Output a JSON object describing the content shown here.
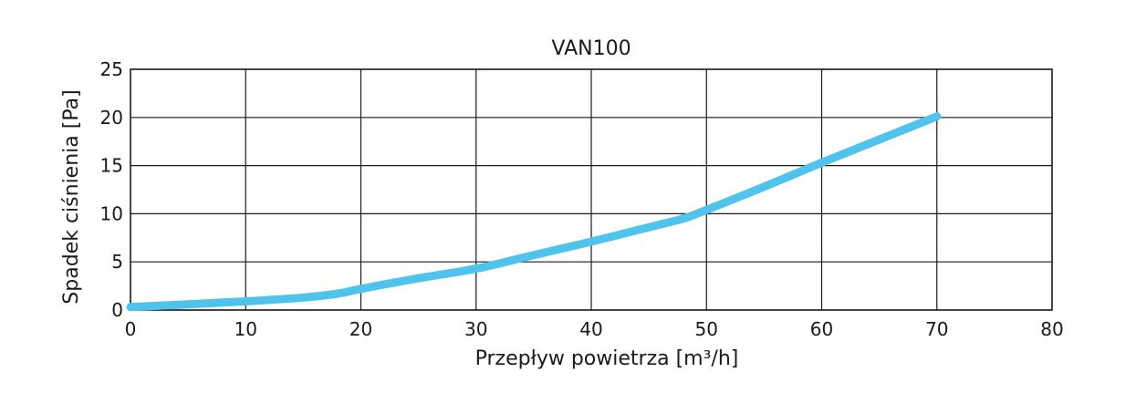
{
  "chart_data": {
    "type": "line",
    "title": "VAN100",
    "xlabel": "Przepływ powietrza [m³/h]",
    "ylabel": "Spadek ciśnienia [Pa]",
    "xlim": [
      0,
      80
    ],
    "ylim": [
      0,
      25
    ],
    "xticks": [
      0,
      10,
      20,
      30,
      40,
      50,
      60,
      70,
      80
    ],
    "yticks": [
      0,
      5,
      10,
      15,
      20,
      25
    ],
    "xtick_labels": [
      "0",
      "10",
      "20",
      "30",
      "40",
      "50",
      "60",
      "70",
      "80"
    ],
    "ytick_labels": [
      "0",
      "5",
      "10",
      "15",
      "20",
      "25"
    ],
    "grid": true,
    "legend": "none",
    "series": [
      {
        "color": "#4fc3ec",
        "x": [
          0,
          5,
          10,
          15,
          18,
          20,
          25,
          30,
          35,
          40,
          45,
          48,
          50,
          55,
          60,
          65,
          70
        ],
        "y": [
          0.3,
          0.6,
          0.9,
          1.3,
          1.7,
          2.2,
          3.3,
          4.3,
          5.7,
          7.1,
          8.6,
          9.5,
          10.4,
          12.8,
          15.3,
          17.7,
          20.1
        ]
      }
    ]
  }
}
